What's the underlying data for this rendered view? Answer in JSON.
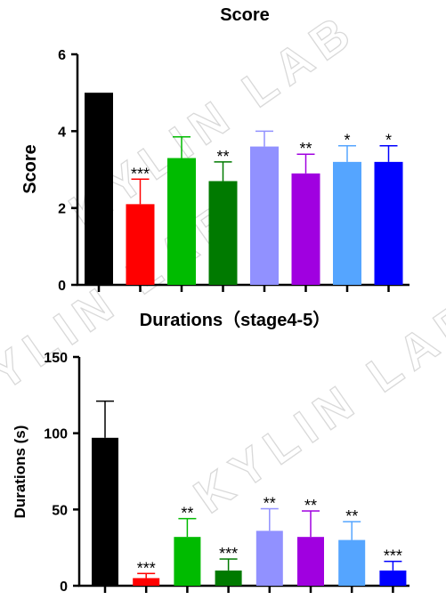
{
  "watermark": "KYLIN LAB",
  "chart_data": [
    {
      "type": "bar",
      "title": "Score",
      "ylabel": "Score",
      "xlabel": "",
      "ylim": [
        0,
        6
      ],
      "yticks": [
        0,
        2,
        4,
        6
      ],
      "categories": [
        "",
        "",
        "",
        "",
        "",
        "",
        "",
        ""
      ],
      "colors": [
        "#000000",
        "#ff0000",
        "#00bb00",
        "#007a00",
        "#9191ff",
        "#a000e0",
        "#55a5ff",
        "#0000ff"
      ],
      "values": [
        5.0,
        2.1,
        3.3,
        2.7,
        3.6,
        2.9,
        3.2,
        3.2
      ],
      "errors": [
        0,
        0.65,
        0.55,
        0.5,
        0.4,
        0.5,
        0.42,
        0.42
      ],
      "significance": [
        "",
        "***",
        "",
        "**",
        "",
        "**",
        "*",
        "*"
      ]
    },
    {
      "type": "bar",
      "title": "Durations（stage4-5）",
      "ylabel": "Durations (s)",
      "xlabel": "",
      "ylim": [
        0,
        150
      ],
      "yticks": [
        0,
        50,
        100,
        150
      ],
      "categories": [
        "",
        "",
        "",
        "",
        "",
        "",
        "",
        ""
      ],
      "colors": [
        "#000000",
        "#ff0000",
        "#00bb00",
        "#007a00",
        "#9191ff",
        "#a000e0",
        "#55a5ff",
        "#0000ff"
      ],
      "values": [
        97,
        5,
        32,
        10,
        36,
        32,
        30,
        10
      ],
      "errors": [
        24,
        3,
        12,
        7.5,
        14.5,
        17,
        12,
        6
      ],
      "significance": [
        "",
        "***",
        "**",
        "***",
        "**",
        "**",
        "**",
        "***"
      ]
    }
  ]
}
